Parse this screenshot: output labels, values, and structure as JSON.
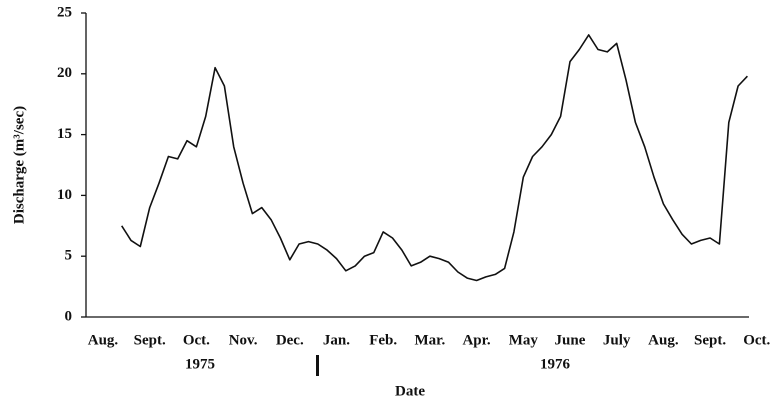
{
  "chart_data": {
    "type": "line",
    "y_label": "Discharge  (m³/sec)",
    "x_label": "Date",
    "year_labels": [
      "1975",
      "1976"
    ],
    "categories": [
      null,
      null,
      "Aug.",
      null,
      null,
      null,
      null,
      "Sept.",
      null,
      null,
      null,
      null,
      "Oct.",
      null,
      null,
      null,
      null,
      "Nov.",
      null,
      null,
      null,
      null,
      "Dec.",
      null,
      null,
      null,
      null,
      "Jan.",
      null,
      null,
      null,
      null,
      "Feb.",
      null,
      null,
      null,
      null,
      "Mar.",
      null,
      null,
      null,
      null,
      "Apr.",
      null,
      null,
      null,
      null,
      "May",
      null,
      null,
      null,
      null,
      "June",
      null,
      null,
      null,
      null,
      "July",
      null,
      null,
      null,
      null,
      "Aug.",
      null,
      null,
      null,
      null,
      "Sept.",
      null,
      null,
      null,
      null,
      "Oct.",
      null,
      null
    ],
    "series": [
      {
        "name": "Discharge",
        "color": "#111111",
        "values": [
          null,
          null,
          null,
          null,
          7.5,
          6.3,
          5.8,
          9.0,
          11.0,
          13.2,
          13.0,
          14.5,
          14.0,
          16.5,
          20.5,
          19.0,
          14.0,
          11.0,
          8.5,
          9.0,
          8.0,
          6.5,
          4.7,
          6.0,
          6.2,
          6.0,
          5.5,
          4.8,
          3.8,
          4.2,
          5.0,
          5.3,
          7.0,
          6.5,
          5.5,
          4.2,
          4.5,
          5.0,
          4.8,
          4.5,
          3.7,
          3.2,
          3.0,
          3.3,
          3.5,
          4.0,
          7.0,
          11.5,
          13.2,
          14.0,
          15.0,
          16.5,
          21.0,
          22.0,
          23.2,
          22.0,
          21.8,
          22.5,
          19.5,
          16.0,
          14.0,
          11.5,
          9.3,
          8.0,
          6.8,
          6.0,
          6.3,
          6.5,
          6.0,
          16.0,
          19.0,
          19.8,
          null,
          null,
          null
        ]
      }
    ],
    "ylim": [
      0,
      25
    ],
    "yticks": [
      0,
      5,
      10,
      15,
      20,
      25
    ],
    "grid": false
  }
}
